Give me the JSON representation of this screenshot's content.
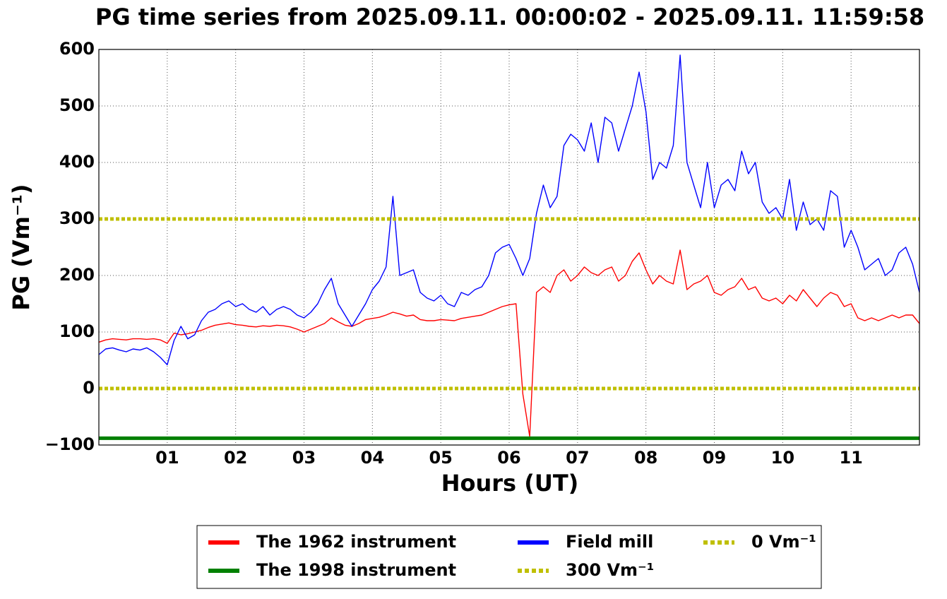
{
  "chart_data": {
    "type": "line",
    "title": "PG time series from 2025.09.11. 00:00:02 - 2025.09.11. 11:59:58",
    "xlabel": "Hours (UT)",
    "ylabel": "PG (Vm⁻¹)",
    "xlim": [
      0,
      12
    ],
    "ylim": [
      -100,
      600
    ],
    "xticks": [
      {
        "value": 1,
        "label": "01"
      },
      {
        "value": 2,
        "label": "02"
      },
      {
        "value": 3,
        "label": "03"
      },
      {
        "value": 4,
        "label": "04"
      },
      {
        "value": 5,
        "label": "05"
      },
      {
        "value": 6,
        "label": "06"
      },
      {
        "value": 7,
        "label": "07"
      },
      {
        "value": 8,
        "label": "08"
      },
      {
        "value": 9,
        "label": "09"
      },
      {
        "value": 10,
        "label": "10"
      },
      {
        "value": 11,
        "label": "11"
      }
    ],
    "yticks": [
      {
        "value": -100,
        "label": "−100"
      },
      0,
      100,
      200,
      300,
      400,
      500,
      600
    ],
    "grid": true,
    "legend": "below",
    "x": [
      0,
      0.1,
      0.2,
      0.3,
      0.4,
      0.5,
      0.6,
      0.7,
      0.8,
      0.9,
      1,
      1.1,
      1.2,
      1.3,
      1.4,
      1.5,
      1.6,
      1.7,
      1.8,
      1.9,
      2,
      2.1,
      2.2,
      2.3,
      2.4,
      2.5,
      2.6,
      2.7,
      2.8,
      2.9,
      3,
      3.1,
      3.2,
      3.3,
      3.4,
      3.5,
      3.6,
      3.7,
      3.8,
      3.9,
      4,
      4.1,
      4.2,
      4.3,
      4.4,
      4.5,
      4.6,
      4.7,
      4.8,
      4.9,
      5,
      5.1,
      5.2,
      5.3,
      5.4,
      5.5,
      5.6,
      5.7,
      5.8,
      5.9,
      6,
      6.1,
      6.2,
      6.3,
      6.4,
      6.5,
      6.6,
      6.7,
      6.8,
      6.9,
      7,
      7.1,
      7.2,
      7.3,
      7.4,
      7.5,
      7.6,
      7.7,
      7.8,
      7.9,
      8,
      8.1,
      8.2,
      8.3,
      8.4,
      8.5,
      8.6,
      8.7,
      8.8,
      8.9,
      9,
      9.1,
      9.2,
      9.3,
      9.4,
      9.5,
      9.6,
      9.7,
      9.8,
      9.9,
      10,
      10.1,
      10.2,
      10.3,
      10.4,
      10.5,
      10.6,
      10.7,
      10.8,
      10.9,
      11,
      11.1,
      11.2,
      11.3,
      11.4,
      11.5,
      11.6,
      11.7,
      11.8,
      11.9,
      12
    ],
    "series": [
      {
        "name": "The 1962 instrument",
        "color": "#ff0000",
        "width": 1.4,
        "values": [
          82,
          86,
          88,
          87,
          86,
          88,
          88,
          87,
          88,
          86,
          80,
          98,
          95,
          97,
          100,
          103,
          108,
          112,
          114,
          116,
          113,
          112,
          110,
          109,
          111,
          110,
          112,
          111,
          109,
          105,
          100,
          105,
          110,
          115,
          125,
          118,
          112,
          110,
          115,
          122,
          124,
          126,
          130,
          135,
          132,
          128,
          130,
          122,
          120,
          120,
          122,
          121,
          120,
          124,
          126,
          128,
          130,
          135,
          140,
          145,
          148,
          150,
          -10,
          -85,
          170,
          180,
          170,
          200,
          210,
          190,
          200,
          215,
          205,
          200,
          210,
          215,
          190,
          200,
          225,
          240,
          210,
          185,
          200,
          190,
          185,
          245,
          175,
          185,
          190,
          200,
          170,
          165,
          175,
          180,
          195,
          175,
          180,
          160,
          155,
          160,
          150,
          165,
          155,
          175,
          160,
          145,
          160,
          170,
          165,
          145,
          150,
          125,
          120,
          125,
          120,
          125,
          130,
          125,
          130,
          130,
          115
        ]
      },
      {
        "name": "The 1998 instrument",
        "color": "#008000",
        "width": 5,
        "x": [
          0,
          12
        ],
        "values": [
          -88,
          -88
        ]
      },
      {
        "name": "Field mill",
        "color": "#0000ff",
        "width": 1.4,
        "values": [
          60,
          70,
          72,
          68,
          65,
          70,
          68,
          72,
          65,
          55,
          42,
          85,
          110,
          88,
          95,
          120,
          135,
          140,
          150,
          155,
          145,
          150,
          140,
          135,
          145,
          130,
          140,
          145,
          140,
          130,
          125,
          135,
          150,
          175,
          195,
          150,
          130,
          110,
          130,
          150,
          175,
          190,
          215,
          340,
          200,
          205,
          210,
          170,
          160,
          155,
          165,
          150,
          145,
          170,
          165,
          175,
          180,
          200,
          240,
          250,
          255,
          230,
          200,
          230,
          310,
          360,
          320,
          340,
          430,
          450,
          440,
          420,
          470,
          400,
          480,
          470,
          420,
          460,
          500,
          560,
          490,
          370,
          400,
          390,
          430,
          590,
          400,
          360,
          320,
          400,
          320,
          360,
          370,
          350,
          420,
          380,
          400,
          330,
          310,
          320,
          300,
          370,
          280,
          330,
          290,
          300,
          280,
          350,
          340,
          250,
          280,
          250,
          210,
          220,
          230,
          200,
          210,
          240,
          250,
          220,
          170
        ]
      },
      {
        "name": "300 Vm⁻¹",
        "color": "#bfbf00",
        "width": 5,
        "style": "dotted",
        "x": [
          0,
          12
        ],
        "values": [
          300,
          300
        ]
      },
      {
        "name": "0 Vm⁻¹",
        "color": "#bfbf00",
        "width": 5,
        "style": "dotted",
        "x": [
          0,
          12
        ],
        "values": [
          0,
          0
        ]
      }
    ]
  }
}
